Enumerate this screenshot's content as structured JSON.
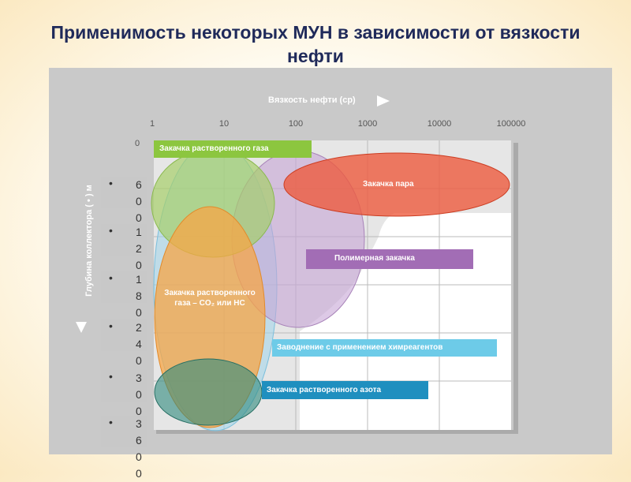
{
  "title": "Применимость некоторых МУН в зависимости от вязкости нефти",
  "x_axis": {
    "label": "Вязкость нефти (ср)",
    "ticks": [
      1,
      10,
      100,
      1000,
      10000,
      100000
    ]
  },
  "y_axis": {
    "label": "Глубина коллектора ( • ) м",
    "ticks": [
      0,
      600,
      1200,
      1800,
      2400,
      3000,
      3600
    ]
  },
  "regions": [
    "Закачка растворенного газа",
    "Закачка пара",
    "Полимерная закачка",
    "Закачка растворенного газа – CO₂ или НС",
    "Заводнение с применением химреагентов",
    "Закачка растворенного азота"
  ]
}
